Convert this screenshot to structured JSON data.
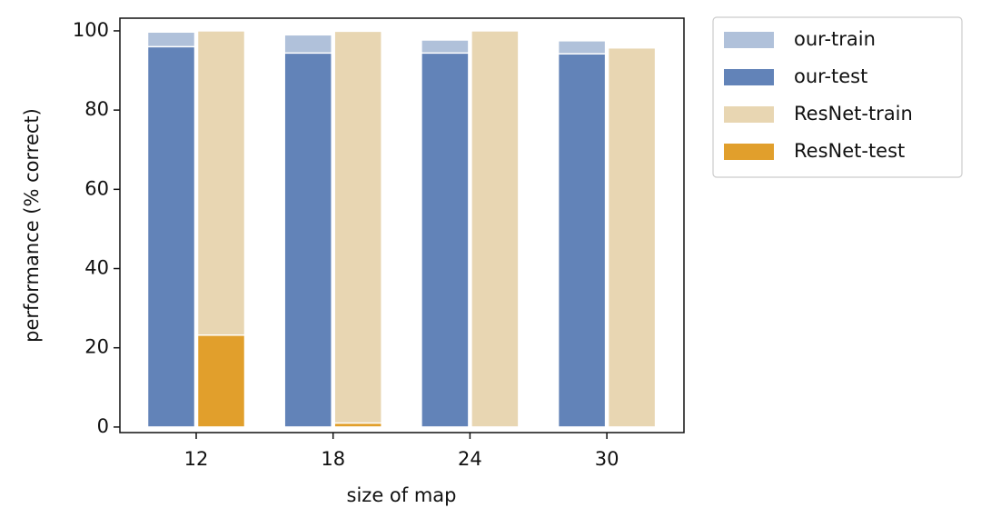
{
  "chart_data": {
    "type": "bar",
    "x_label": "size of map",
    "y_label": "performance (% correct)",
    "categories": [
      "12",
      "18",
      "24",
      "30"
    ],
    "series": [
      {
        "name": "our-train",
        "color": "#b0c1da",
        "values": [
          99.7,
          99,
          97.7,
          97.5
        ]
      },
      {
        "name": "our-test",
        "color": "#6283b8",
        "values": [
          96,
          94.4,
          94.4,
          94.2
        ]
      },
      {
        "name": "ResNet-train",
        "color": "#e8d6b2",
        "values": [
          100,
          99.9,
          100,
          95.7
        ]
      },
      {
        "name": "ResNet-test",
        "color": "#e19f2c",
        "values": [
          23.2,
          1,
          0,
          0
        ]
      }
    ],
    "ylim": [
      -1.4,
      103.2
    ],
    "yticks": [
      0,
      20,
      40,
      60,
      80,
      100
    ],
    "legend": "outside-upper-right"
  }
}
